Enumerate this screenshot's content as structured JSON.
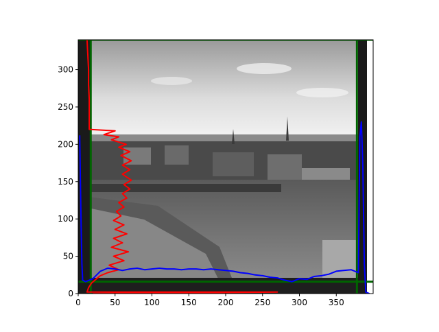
{
  "chart_data": {
    "type": "line",
    "title": "",
    "xlabel": "",
    "ylabel": "",
    "xlim": [
      0,
      400
    ],
    "ylim": [
      0,
      340
    ],
    "x_ticks": [
      0,
      50,
      100,
      150,
      200,
      250,
      300,
      350
    ],
    "y_ticks": [
      0,
      50,
      100,
      150,
      200,
      250,
      300
    ],
    "background_image": {
      "description_name": "monochrome-photo",
      "x_range": [
        0,
        395
      ],
      "y_range": [
        0,
        340
      ]
    },
    "series": [
      {
        "color": "#ff0000",
        "kind": "row-intensity-profile",
        "points": [
          [
            12,
            340
          ],
          [
            13,
            320
          ],
          [
            14,
            300
          ],
          [
            14,
            280
          ],
          [
            15,
            260
          ],
          [
            15,
            240
          ],
          [
            15,
            220
          ],
          [
            50,
            218
          ],
          [
            35,
            213
          ],
          [
            55,
            210
          ],
          [
            45,
            206
          ],
          [
            65,
            200
          ],
          [
            55,
            196
          ],
          [
            70,
            190
          ],
          [
            58,
            185
          ],
          [
            72,
            178
          ],
          [
            60,
            172
          ],
          [
            70,
            166
          ],
          [
            60,
            160
          ],
          [
            72,
            152
          ],
          [
            62,
            146
          ],
          [
            70,
            140
          ],
          [
            60,
            134
          ],
          [
            66,
            128
          ],
          [
            55,
            122
          ],
          [
            62,
            116
          ],
          [
            52,
            110
          ],
          [
            58,
            104
          ],
          [
            48,
            98
          ],
          [
            62,
            92
          ],
          [
            50,
            86
          ],
          [
            66,
            80
          ],
          [
            48,
            74
          ],
          [
            60,
            68
          ],
          [
            45,
            62
          ],
          [
            68,
            56
          ],
          [
            48,
            50
          ],
          [
            62,
            44
          ],
          [
            42,
            38
          ],
          [
            55,
            32
          ],
          [
            40,
            28
          ],
          [
            30,
            24
          ],
          [
            25,
            20
          ],
          [
            18,
            14
          ],
          [
            14,
            8
          ],
          [
            12,
            2
          ],
          [
            270,
            2
          ],
          [
            20,
            0
          ]
        ]
      },
      {
        "color": "#0000ff",
        "kind": "column-intensity-profile",
        "points": [
          [
            2,
            212
          ],
          [
            3,
            150
          ],
          [
            4,
            90
          ],
          [
            5,
            40
          ],
          [
            6,
            18
          ],
          [
            10,
            16
          ],
          [
            20,
            20
          ],
          [
            30,
            30
          ],
          [
            40,
            34
          ],
          [
            50,
            33
          ],
          [
            60,
            31
          ],
          [
            70,
            33
          ],
          [
            80,
            34
          ],
          [
            90,
            32
          ],
          [
            100,
            33
          ],
          [
            110,
            34
          ],
          [
            120,
            33
          ],
          [
            130,
            33
          ],
          [
            140,
            32
          ],
          [
            150,
            33
          ],
          [
            160,
            33
          ],
          [
            170,
            32
          ],
          [
            180,
            33
          ],
          [
            190,
            32
          ],
          [
            200,
            31
          ],
          [
            210,
            30
          ],
          [
            220,
            28
          ],
          [
            230,
            27
          ],
          [
            240,
            25
          ],
          [
            250,
            24
          ],
          [
            260,
            22
          ],
          [
            270,
            21
          ],
          [
            280,
            18
          ],
          [
            290,
            16
          ],
          [
            300,
            20
          ],
          [
            310,
            19
          ],
          [
            320,
            23
          ],
          [
            330,
            24
          ],
          [
            340,
            26
          ],
          [
            350,
            30
          ],
          [
            360,
            31
          ],
          [
            370,
            32
          ],
          [
            380,
            28
          ],
          [
            382,
            210
          ],
          [
            384,
            230
          ],
          [
            386,
            170
          ],
          [
            388,
            40
          ],
          [
            390,
            2
          ],
          [
            395,
            0
          ]
        ]
      }
    ],
    "lines": [
      {
        "color": "#006400",
        "orientation": "vertical",
        "value": 17
      },
      {
        "color": "#006400",
        "orientation": "vertical",
        "value": 378
      },
      {
        "color": "#006400",
        "orientation": "horizontal",
        "value": 16
      },
      {
        "color": "#006400",
        "orientation": "horizontal",
        "value": 340
      }
    ]
  }
}
